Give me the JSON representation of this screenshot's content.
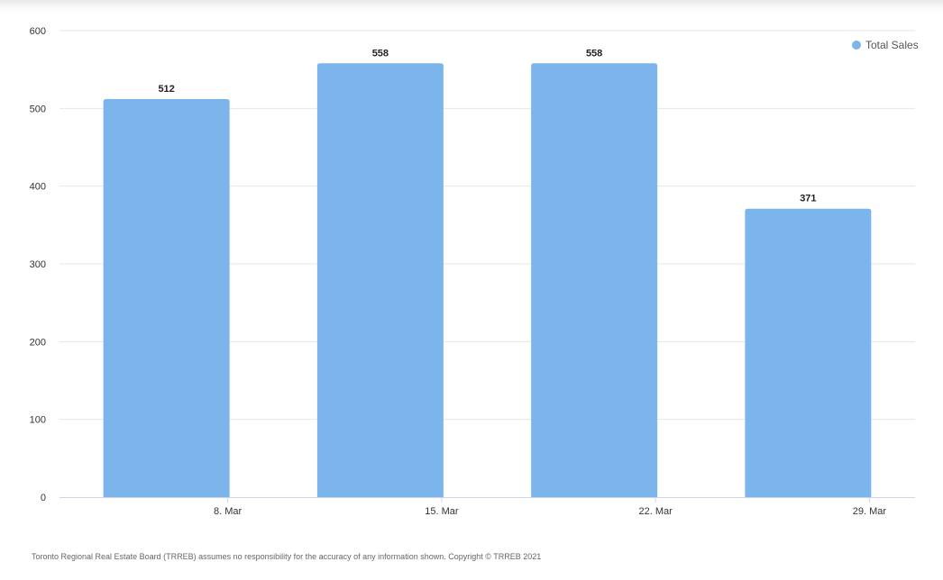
{
  "chart_data": {
    "type": "bar",
    "categories": [
      "8. Mar",
      "15. Mar",
      "22. Mar",
      "29. Mar"
    ],
    "series": [
      {
        "name": "Total Sales",
        "values": [
          512,
          558,
          558,
          371
        ],
        "color": "#7cb5ec"
      }
    ],
    "title": "",
    "xlabel": "",
    "ylabel": "",
    "ylim": [
      0,
      600
    ],
    "yticks": [
      0,
      100,
      200,
      300,
      400,
      500,
      600
    ],
    "grid": true,
    "legend_position": "top-right",
    "data_labels": true
  },
  "colors": {
    "bar": "#7cb5ec",
    "grid": "#e6e6e6",
    "axis": "#ccd6eb"
  },
  "footer": {
    "disclaimer": "Toronto Regional Real Estate Board (TRREB) assumes no responsibility for the accuracy of any information shown. Copyright © TRREB 2021"
  }
}
